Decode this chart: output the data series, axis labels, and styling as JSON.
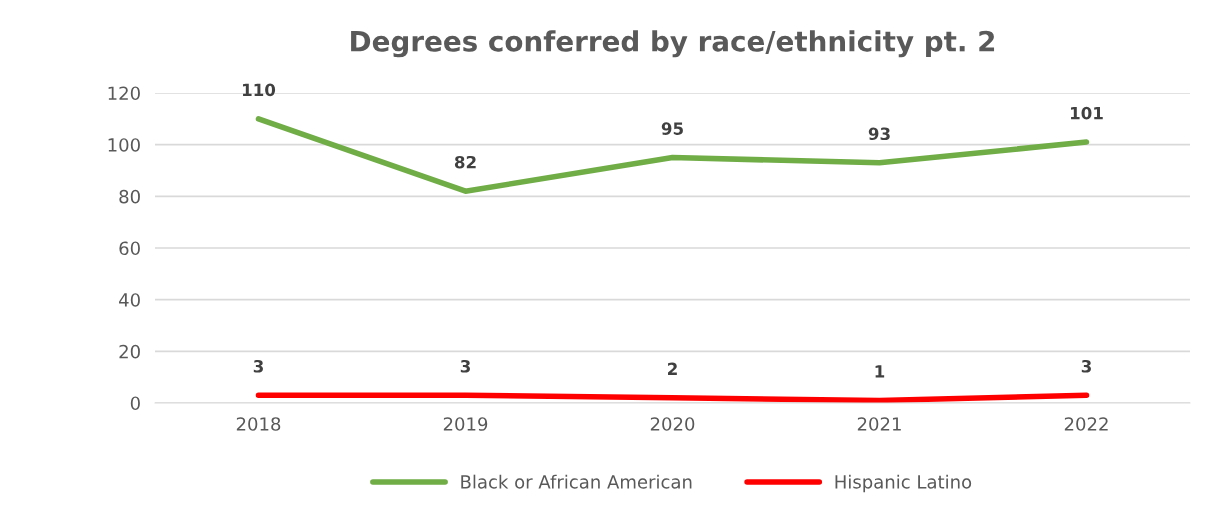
{
  "chart_data": {
    "type": "line",
    "title": "Degrees conferred by race/ethnicity pt. 2",
    "categories": [
      "2018",
      "2019",
      "2020",
      "2021",
      "2022"
    ],
    "series": [
      {
        "name": "Black or African American",
        "color": "#70ad47",
        "values": [
          110,
          82,
          95,
          93,
          101
        ]
      },
      {
        "name": "Hispanic Latino",
        "color": "#ff0000",
        "values": [
          3,
          3,
          2,
          1,
          3
        ]
      }
    ],
    "ylim": [
      0,
      120
    ],
    "yticks": [
      0,
      20,
      40,
      60,
      80,
      100,
      120
    ],
    "grid": "y",
    "legend": "bottom",
    "data_labels": true,
    "marker": "none",
    "line_style": "solid"
  }
}
